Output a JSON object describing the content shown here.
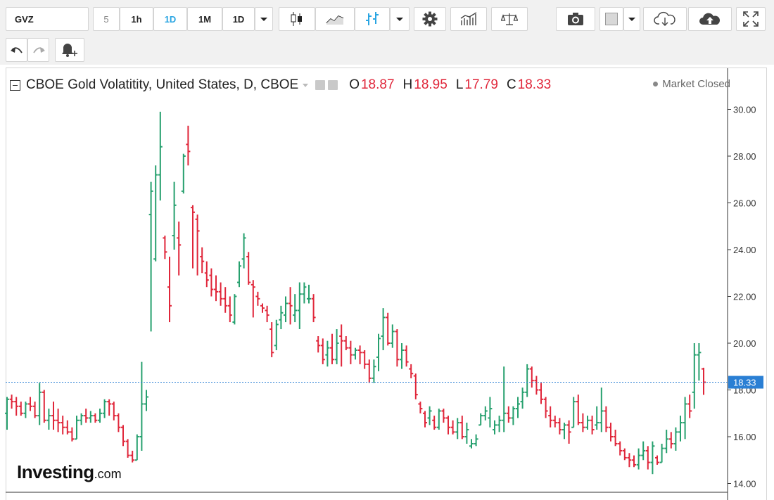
{
  "toolbar": {
    "symbol": "GVZ",
    "intervals": [
      "5",
      "1h",
      "1D",
      "1M",
      "1D"
    ],
    "active_interval_index": 2
  },
  "legend": {
    "title": "CBOE Gold Volatitity, United States, D, CBOE",
    "open_label": "O",
    "open": "18.87",
    "high_label": "H",
    "high": "18.95",
    "low_label": "L",
    "low": "17.79",
    "close_label": "C",
    "close": "18.33"
  },
  "status": "Market Closed",
  "logo": {
    "main": "Investing",
    "suffix": ".com"
  },
  "colors": {
    "up": "#26a06e",
    "down": "#e0263a",
    "accent": "#2aa5e2",
    "last_price": "#2a7fd4"
  },
  "icons": [
    "undo-icon",
    "redo-icon",
    "alert-icon",
    "candles-icon",
    "line-chart-icon",
    "ohlc-bars-icon",
    "settings-icon",
    "indicators-icon",
    "compare-icon",
    "camera-icon",
    "color-square-icon",
    "cloud-download-icon",
    "cloud-upload-icon",
    "fullscreen-icon"
  ],
  "chart_data": {
    "type": "ohlc",
    "title": "CBOE Gold Volatitity, United States, D, CBOE",
    "ylim": [
      13.5,
      31.0
    ],
    "y_ticks": [
      "14.00",
      "16.00",
      "18.00",
      "20.00",
      "22.00",
      "24.00",
      "26.00",
      "28.00",
      "30.00"
    ],
    "last_price": 18.33,
    "last_price_label": "18.33",
    "grid": false,
    "bars": [
      [
        17.0,
        17.7,
        16.3,
        17.6
      ],
      [
        17.6,
        17.8,
        17.2,
        17.5
      ],
      [
        17.5,
        17.7,
        16.9,
        17.3
      ],
      [
        17.3,
        17.5,
        16.9,
        17.0
      ],
      [
        17.0,
        17.5,
        16.8,
        17.4
      ],
      [
        17.4,
        17.7,
        17.1,
        17.3
      ],
      [
        17.3,
        17.5,
        16.8,
        16.9
      ],
      [
        16.9,
        18.3,
        16.5,
        17.9
      ],
      [
        17.9,
        18.0,
        16.6,
        16.7
      ],
      [
        16.7,
        17.2,
        16.3,
        16.9
      ],
      [
        16.9,
        17.5,
        16.3,
        16.7
      ],
      [
        16.7,
        17.2,
        16.2,
        16.6
      ],
      [
        16.6,
        16.9,
        16.1,
        16.4
      ],
      [
        16.4,
        16.7,
        16.1,
        16.2
      ],
      [
        16.2,
        16.4,
        15.8,
        15.9
      ],
      [
        15.9,
        16.9,
        15.9,
        16.7
      ],
      [
        16.7,
        17.0,
        16.5,
        16.9
      ],
      [
        16.9,
        17.2,
        16.6,
        16.8
      ],
      [
        16.8,
        17.1,
        16.6,
        16.9
      ],
      [
        16.9,
        17.0,
        16.6,
        16.7
      ],
      [
        16.7,
        17.2,
        16.6,
        17.0
      ],
      [
        17.0,
        17.6,
        16.8,
        17.5
      ],
      [
        17.5,
        17.6,
        16.9,
        17.4
      ],
      [
        17.4,
        17.5,
        16.7,
        16.9
      ],
      [
        16.9,
        17.0,
        16.2,
        16.4
      ],
      [
        16.4,
        16.5,
        15.6,
        15.8
      ],
      [
        15.8,
        15.9,
        15.1,
        15.2
      ],
      [
        15.2,
        15.4,
        14.9,
        15.0
      ],
      [
        15.0,
        16.1,
        15.0,
        16.0
      ],
      [
        16.0,
        19.2,
        15.4,
        17.4
      ],
      [
        17.4,
        18.0,
        17.1,
        17.7
      ],
      [
        25.5,
        26.9,
        20.5,
        26.5
      ],
      [
        23.6,
        27.6,
        23.5,
        27.2
      ],
      [
        27.2,
        29.9,
        26.1,
        28.4
      ],
      [
        24.5,
        24.6,
        23.6,
        23.9
      ],
      [
        22.4,
        23.7,
        20.9,
        21.6
      ],
      [
        24.6,
        26.9,
        24.0,
        25.9
      ],
      [
        24.5,
        25.2,
        22.9,
        24.2
      ],
      [
        26.5,
        28.1,
        26.4,
        28.0
      ],
      [
        28.5,
        29.3,
        27.6,
        28.2
      ],
      [
        25.8,
        25.9,
        23.2,
        25.6
      ],
      [
        25.3,
        25.5,
        22.9,
        24.8
      ],
      [
        23.7,
        24.1,
        23.0,
        23.5
      ],
      [
        23.0,
        23.5,
        22.4,
        22.7
      ],
      [
        22.9,
        23.2,
        22.0,
        22.3
      ],
      [
        22.3,
        22.9,
        21.8,
        22.2
      ],
      [
        22.2,
        22.6,
        21.6,
        21.9
      ],
      [
        21.9,
        22.4,
        21.3,
        21.6
      ],
      [
        21.6,
        22.0,
        20.9,
        21.2
      ],
      [
        20.9,
        22.1,
        20.8,
        22.0
      ],
      [
        22.6,
        23.5,
        22.4,
        23.3
      ],
      [
        23.6,
        24.7,
        23.2,
        24.5
      ],
      [
        23.7,
        23.9,
        22.5,
        22.6
      ],
      [
        22.5,
        22.7,
        21.1,
        22.4
      ],
      [
        22.0,
        22.2,
        21.6,
        21.9
      ],
      [
        21.6,
        21.7,
        21.3,
        21.5
      ],
      [
        21.4,
        21.6,
        20.9,
        21.2
      ],
      [
        20.6,
        20.9,
        19.4,
        19.6
      ],
      [
        19.9,
        21.0,
        19.7,
        20.8
      ],
      [
        21.0,
        21.6,
        20.6,
        21.3
      ],
      [
        21.2,
        22.0,
        20.9,
        21.7
      ],
      [
        21.7,
        22.4,
        20.8,
        21.6
      ],
      [
        21.2,
        22.1,
        20.9,
        21.4
      ],
      [
        21.4,
        22.6,
        20.6,
        22.1
      ],
      [
        22.1,
        22.6,
        21.7,
        22.4
      ],
      [
        21.9,
        22.5,
        21.7,
        21.9
      ],
      [
        21.9,
        22.1,
        20.9,
        21.1
      ],
      [
        20.1,
        20.3,
        19.6,
        19.9
      ],
      [
        19.9,
        20.2,
        19.1,
        19.3
      ],
      [
        19.5,
        20.1,
        19.0,
        19.8
      ],
      [
        19.8,
        20.4,
        19.1,
        19.3
      ],
      [
        19.3,
        20.6,
        19.1,
        20.0
      ],
      [
        20.3,
        20.8,
        19.0,
        20.1
      ],
      [
        20.1,
        20.3,
        19.7,
        19.8
      ],
      [
        19.8,
        20.1,
        19.1,
        19.5
      ],
      [
        19.5,
        19.8,
        19.3,
        19.7
      ],
      [
        19.7,
        19.9,
        19.1,
        19.6
      ],
      [
        19.6,
        19.7,
        18.9,
        19.1
      ],
      [
        19.1,
        19.3,
        18.3,
        18.5
      ],
      [
        18.5,
        19.3,
        18.3,
        19.0
      ],
      [
        19.4,
        20.4,
        18.8,
        20.2
      ],
      [
        20.3,
        21.5,
        19.7,
        21.1
      ],
      [
        21.1,
        21.3,
        19.9,
        20.0
      ],
      [
        20.0,
        20.8,
        19.8,
        20.5
      ],
      [
        20.5,
        20.6,
        19.0,
        19.3
      ],
      [
        19.3,
        20.0,
        18.9,
        19.7
      ],
      [
        19.7,
        19.9,
        19.0,
        19.2
      ],
      [
        18.9,
        19.1,
        18.5,
        18.7
      ],
      [
        18.6,
        18.7,
        17.6,
        17.8
      ],
      [
        17.4,
        17.5,
        17.0,
        17.2
      ],
      [
        17.0,
        17.1,
        16.4,
        16.6
      ],
      [
        16.8,
        17.3,
        16.5,
        17.1
      ],
      [
        16.7,
        16.9,
        16.3,
        16.4
      ],
      [
        16.4,
        17.2,
        16.3,
        17.1
      ],
      [
        17.1,
        17.2,
        16.6,
        16.8
      ],
      [
        16.8,
        16.9,
        16.1,
        16.4
      ],
      [
        16.4,
        16.7,
        16.1,
        16.2
      ],
      [
        16.2,
        16.8,
        15.9,
        16.6
      ],
      [
        16.6,
        16.9,
        15.9,
        16.0
      ],
      [
        16.0,
        16.6,
        15.7,
        16.3
      ],
      [
        15.6,
        15.9,
        15.5,
        15.7
      ],
      [
        15.7,
        16.1,
        15.6,
        15.9
      ],
      [
        16.5,
        17.0,
        16.5,
        16.9
      ],
      [
        16.9,
        17.3,
        16.7,
        17.1
      ],
      [
        16.8,
        17.7,
        16.4,
        17.2
      ],
      [
        16.3,
        16.7,
        16.1,
        16.5
      ],
      [
        16.5,
        16.9,
        16.2,
        16.7
      ],
      [
        16.7,
        19.0,
        16.2,
        17.0
      ],
      [
        17.0,
        17.3,
        16.6,
        16.8
      ],
      [
        16.8,
        17.3,
        16.5,
        17.2
      ],
      [
        17.2,
        17.7,
        16.8,
        17.4
      ],
      [
        17.5,
        18.1,
        17.2,
        17.9
      ],
      [
        17.9,
        19.1,
        17.7,
        18.9
      ],
      [
        18.9,
        19.0,
        18.1,
        18.4
      ],
      [
        18.4,
        18.6,
        17.8,
        18.0
      ],
      [
        18.0,
        18.3,
        17.4,
        17.6
      ],
      [
        17.6,
        17.7,
        16.8,
        17.1
      ],
      [
        16.9,
        17.3,
        16.4,
        16.7
      ],
      [
        16.7,
        16.9,
        16.4,
        16.6
      ],
      [
        16.6,
        16.8,
        16.1,
        16.3
      ],
      [
        16.3,
        16.6,
        15.9,
        16.5
      ],
      [
        16.5,
        16.7,
        15.7,
        16.2
      ],
      [
        16.4,
        17.7,
        16.4,
        17.5
      ],
      [
        17.5,
        17.8,
        16.5,
        16.6
      ],
      [
        16.6,
        17.0,
        16.2,
        16.4
      ],
      [
        16.4,
        16.9,
        16.3,
        16.7
      ],
      [
        16.7,
        16.9,
        16.1,
        16.3
      ],
      [
        16.5,
        17.3,
        16.3,
        16.6
      ],
      [
        16.6,
        18.1,
        16.2,
        17.1
      ],
      [
        17.1,
        17.3,
        16.2,
        16.4
      ],
      [
        16.4,
        16.6,
        15.8,
        16.0
      ],
      [
        16.0,
        16.3,
        15.6,
        15.7
      ],
      [
        15.7,
        15.8,
        15.2,
        15.4
      ],
      [
        15.4,
        15.5,
        15.0,
        15.1
      ],
      [
        15.1,
        15.3,
        14.7,
        15.0
      ],
      [
        15.0,
        15.2,
        14.7,
        14.8
      ],
      [
        14.8,
        15.5,
        14.6,
        15.2
      ],
      [
        15.2,
        15.8,
        15.0,
        15.4
      ],
      [
        15.4,
        15.6,
        14.6,
        14.9
      ],
      [
        14.9,
        15.8,
        14.4,
        15.6
      ],
      [
        15.1,
        15.2,
        14.8,
        14.9
      ],
      [
        14.9,
        15.7,
        14.9,
        15.5
      ],
      [
        15.5,
        16.3,
        15.3,
        15.9
      ],
      [
        15.9,
        16.2,
        15.5,
        15.7
      ],
      [
        15.7,
        16.4,
        15.4,
        16.2
      ],
      [
        16.2,
        16.9,
        15.8,
        16.6
      ],
      [
        16.6,
        17.7,
        15.9,
        17.4
      ],
      [
        17.4,
        17.8,
        16.8,
        17.1
      ],
      [
        17.9,
        20.0,
        17.2,
        19.5
      ],
      [
        19.5,
        20.0,
        18.4,
        19.6
      ],
      [
        18.9,
        18.95,
        17.79,
        18.33
      ]
    ]
  }
}
